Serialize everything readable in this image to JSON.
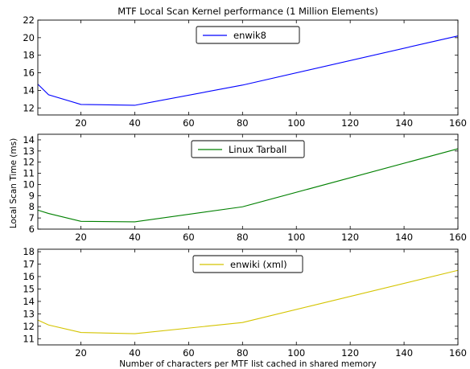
{
  "chart_data": {
    "title": "MTF Local Scan Kernel performance (1 Million Elements)",
    "xlabel": "Number of characters per MTF list cached in shared memory",
    "ylabel": "Local Scan Time (ms)",
    "subplots": [
      {
        "type": "line",
        "legend": "enwik8",
        "legend_position": "top-center",
        "color": "#0000ff",
        "xlim": [
          4,
          160
        ],
        "ylim": [
          11.2,
          22
        ],
        "xticks": [
          20,
          40,
          60,
          80,
          100,
          120,
          140,
          160
        ],
        "yticks": [
          12,
          14,
          16,
          18,
          20,
          22
        ],
        "x": [
          4,
          8,
          20,
          40,
          80,
          160
        ],
        "y": [
          14.7,
          13.5,
          12.4,
          12.3,
          14.6,
          20.2
        ]
      },
      {
        "type": "line",
        "legend": "Linux Tarball",
        "legend_position": "top-center",
        "color": "#008000",
        "xlim": [
          4,
          160
        ],
        "ylim": [
          6,
          14.5
        ],
        "xticks": [
          20,
          40,
          60,
          80,
          100,
          120,
          140,
          160
        ],
        "yticks": [
          6,
          7,
          8,
          9,
          10,
          11,
          12,
          13,
          14
        ],
        "x": [
          4,
          8,
          20,
          40,
          80,
          160
        ],
        "y": [
          7.7,
          7.4,
          6.7,
          6.65,
          8.0,
          13.2
        ]
      },
      {
        "type": "line",
        "legend": "enwiki (xml)",
        "legend_position": "top-center",
        "color": "#d4c400",
        "xlim": [
          4,
          160
        ],
        "ylim": [
          10.5,
          18.2
        ],
        "xticks": [
          20,
          40,
          60,
          80,
          100,
          120,
          140,
          160
        ],
        "yticks": [
          11,
          12,
          13,
          14,
          15,
          16,
          17,
          18
        ],
        "x": [
          4,
          8,
          20,
          40,
          80,
          160
        ],
        "y": [
          12.5,
          12.1,
          11.5,
          11.4,
          12.3,
          16.5
        ]
      }
    ]
  }
}
